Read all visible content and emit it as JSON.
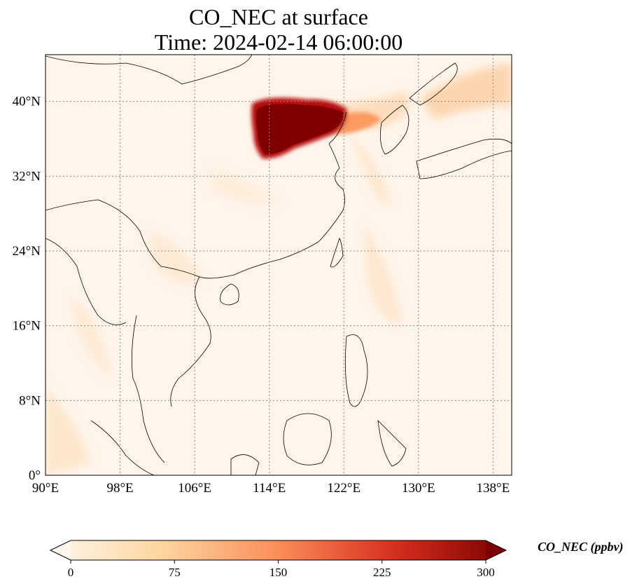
{
  "title": {
    "line1": "CO_NEC at surface",
    "line2": "Time: 2024-02-14 06:00:00"
  },
  "map": {
    "lon_range": [
      90,
      140
    ],
    "lat_range": [
      0,
      45
    ],
    "lon_ticks": [
      {
        "value": 90,
        "label": "90°E"
      },
      {
        "value": 98,
        "label": "98°E"
      },
      {
        "value": 106,
        "label": "106°E"
      },
      {
        "value": 114,
        "label": "114°E"
      },
      {
        "value": 122,
        "label": "122°E"
      },
      {
        "value": 130,
        "label": "130°E"
      },
      {
        "value": 138,
        "label": "138°E"
      }
    ],
    "lat_ticks": [
      {
        "value": 0,
        "label": "0°"
      },
      {
        "value": 8,
        "label": "8°N"
      },
      {
        "value": 16,
        "label": "16°N"
      },
      {
        "value": 24,
        "label": "24°N"
      },
      {
        "value": 32,
        "label": "32°N"
      },
      {
        "value": 40,
        "label": "40°N"
      }
    ],
    "gridlines": true,
    "colormap": "OrRd",
    "colors": {
      "background": "#fff5eb",
      "low": "#fde6cc",
      "mid": "#fdb976",
      "high": "#e34a33",
      "max": "#7f0000",
      "coast": "#000000",
      "grid": "#888888"
    }
  },
  "colorbar": {
    "label": "CO_NEC (ppbv)",
    "min": 0,
    "max": 300,
    "extend": "both",
    "ticks": [
      {
        "value": 0,
        "label": "0"
      },
      {
        "value": 75,
        "label": "75"
      },
      {
        "value": 150,
        "label": "150"
      },
      {
        "value": 225,
        "label": "225"
      },
      {
        "value": 300,
        "label": "300"
      }
    ]
  }
}
